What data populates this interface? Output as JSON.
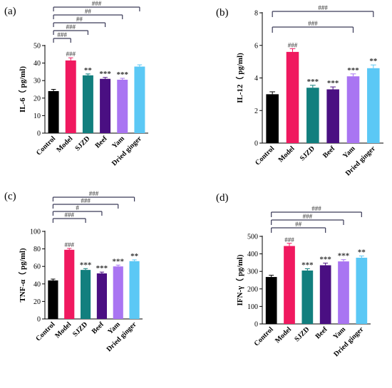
{
  "colors": {
    "Control": "#000000",
    "Model": "#f0195f",
    "SJZD": "#127f7e",
    "Beef": "#4a0f82",
    "Yam": "#a975f2",
    "Dried ginger": "#5bc8f5",
    "bracket": "#3a3a58"
  },
  "chart_data": [
    {
      "type": "bar",
      "panel_label": "(a)",
      "ylabel": "IL-6（ pg/ml)",
      "ylim": [
        0,
        50
      ],
      "yticks": [
        "0",
        "10",
        "20",
        "30",
        "40",
        "50"
      ],
      "categories": [
        "Control",
        "Model",
        "SJZD",
        "Beef",
        "Yam",
        "Dried ginger"
      ],
      "values": [
        24,
        41.5,
        33,
        31,
        30.5,
        38
      ],
      "errors": [
        1,
        1.5,
        0.8,
        0.8,
        0.8,
        1
      ],
      "bar_labels": [
        "",
        "###",
        "**",
        "***",
        "***",
        ""
      ],
      "brackets": [
        {
          "to": "Model",
          "label": "###"
        },
        {
          "to": "SJZD",
          "label": "###"
        },
        {
          "to": "Beef",
          "label": "##"
        },
        {
          "to": "Yam",
          "label": "##"
        },
        {
          "to": "Dried ginger",
          "label": "###"
        }
      ]
    },
    {
      "type": "bar",
      "panel_label": "(b)",
      "ylabel": "IL-12（ pg/ml)",
      "ylim": [
        0,
        8
      ],
      "yticks": [
        "0",
        "2",
        "4",
        "6",
        "8"
      ],
      "categories": [
        "Control",
        "Model",
        "SJZD",
        "Beef",
        "Yam",
        "Dried ginger"
      ],
      "values": [
        3,
        5.6,
        3.4,
        3.3,
        4.1,
        4.6
      ],
      "errors": [
        0.15,
        0.2,
        0.15,
        0.15,
        0.15,
        0.2
      ],
      "bar_labels": [
        "",
        "###",
        "***",
        "***",
        "***",
        "**"
      ],
      "brackets": [
        {
          "to": "Yam",
          "label": "###"
        },
        {
          "to": "Dried ginger",
          "label": "###"
        }
      ]
    },
    {
      "type": "bar",
      "panel_label": "(c)",
      "ylabel": "TNF-α（ pg/ml)",
      "ylim": [
        0,
        100
      ],
      "yticks": [
        "0",
        "20",
        "40",
        "60",
        "80",
        "100"
      ],
      "categories": [
        "Control",
        "Model",
        "SJZD",
        "Beef",
        "Yam",
        "Dried ginger"
      ],
      "values": [
        44,
        79,
        56,
        52,
        60,
        66
      ],
      "errors": [
        1.5,
        1.5,
        1.5,
        1.5,
        1.5,
        1.5
      ],
      "bar_labels": [
        "",
        "###",
        "***",
        "***",
        "***",
        "**"
      ],
      "brackets": [
        {
          "to": "SJZD",
          "label": "###"
        },
        {
          "to": "Beef",
          "label": "#"
        },
        {
          "to": "Yam",
          "label": "###"
        },
        {
          "to": "Dried ginger",
          "label": "###"
        }
      ]
    },
    {
      "type": "bar",
      "panel_label": "(d)",
      "ylabel": "IFN-γ（ pg/ml)",
      "ylim": [
        0,
        500
      ],
      "yticks": [
        "0",
        "100",
        "200",
        "300",
        "400",
        "500"
      ],
      "categories": [
        "Control",
        "Model",
        "SJZD",
        "Beef",
        "Yam",
        "Dried ginger"
      ],
      "values": [
        268,
        445,
        305,
        335,
        357,
        378
      ],
      "errors": [
        10,
        15,
        10,
        12,
        10,
        10
      ],
      "bar_labels": [
        "",
        "###",
        "***",
        "***",
        "***",
        "**"
      ],
      "brackets": [
        {
          "to": "Beef",
          "label": "##"
        },
        {
          "to": "Yam",
          "label": "###"
        },
        {
          "to": "Dried ginger",
          "label": "###"
        }
      ]
    }
  ]
}
